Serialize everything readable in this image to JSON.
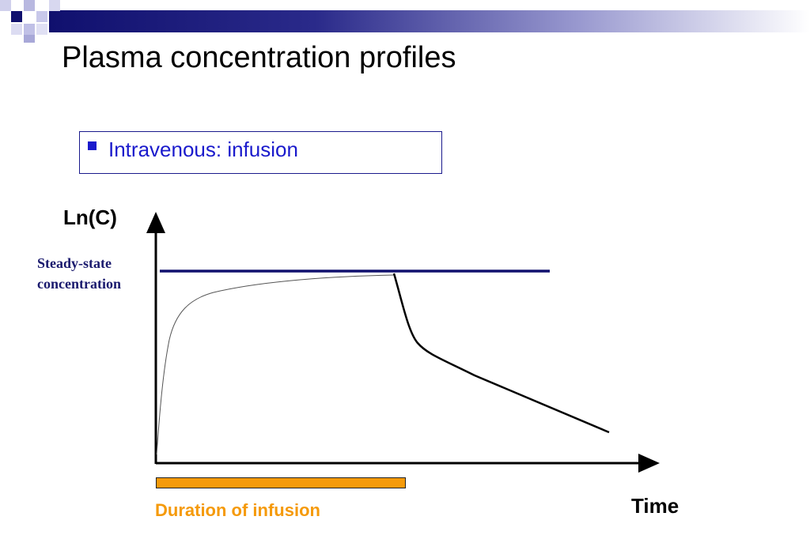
{
  "slide": {
    "title": "Plasma concentration profiles",
    "bullet": "Intravenous: infusion"
  },
  "diagram": {
    "y_axis_label": "Ln(C)",
    "x_axis_label": "Time",
    "steady_state_label_line1": "Steady-state",
    "steady_state_label_line2": "concentration",
    "infusion_label": "Duration of infusion"
  },
  "colors": {
    "banner_dark": "#10106e",
    "bullet_blue": "#1a1acc",
    "steady_state_line": "#10106e",
    "infusion_orange": "#f59a0a",
    "curve": "#000000"
  }
}
